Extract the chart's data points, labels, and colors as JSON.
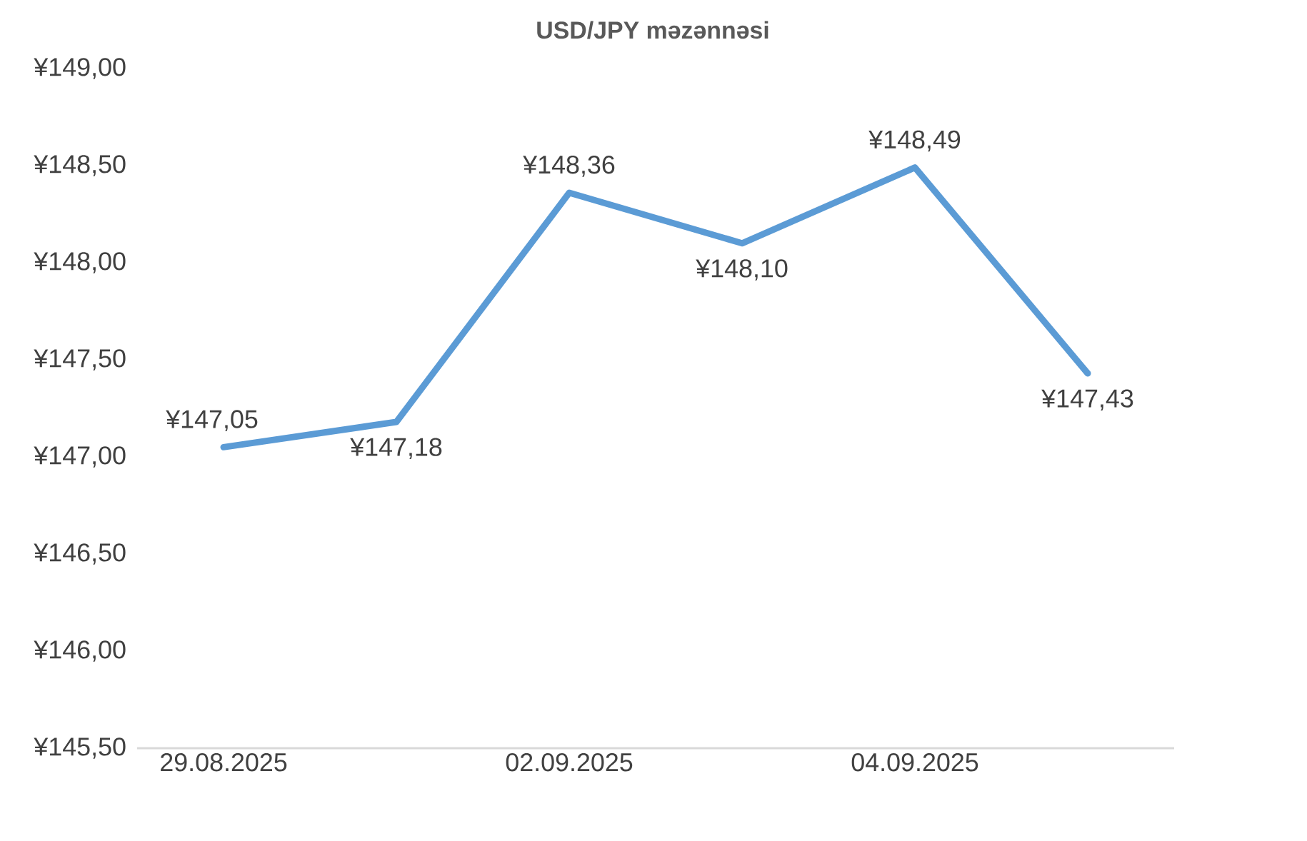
{
  "chart_data": {
    "type": "line",
    "title": "USD/JPY məzənnəsi",
    "categories": [
      "29.08.2025",
      null,
      "02.09.2025",
      null,
      "04.09.2025",
      null
    ],
    "series": [
      {
        "color": "#5b9bd5",
        "values": [
          147.05,
          147.18,
          148.36,
          148.1,
          148.49,
          147.43
        ],
        "value_labels": [
          "¥147,05",
          "¥147,18",
          "¥148,36",
          "¥148,10",
          "¥148,49",
          "¥147,43"
        ]
      }
    ],
    "ylim": [
      145.5,
      149.0
    ],
    "yticks": [
      {
        "value": 145.5,
        "label": "¥145,50"
      },
      {
        "value": 146.0,
        "label": "¥146,00"
      },
      {
        "value": 146.5,
        "label": "¥146,50"
      },
      {
        "value": 147.0,
        "label": "¥147,00"
      },
      {
        "value": 147.5,
        "label": "¥147,50"
      },
      {
        "value": 148.0,
        "label": "¥148,00"
      },
      {
        "value": 148.5,
        "label": "¥148,50"
      },
      {
        "value": 149.0,
        "label": "¥149,00"
      }
    ],
    "grid": false,
    "marker": "none",
    "line_style": "solid"
  }
}
